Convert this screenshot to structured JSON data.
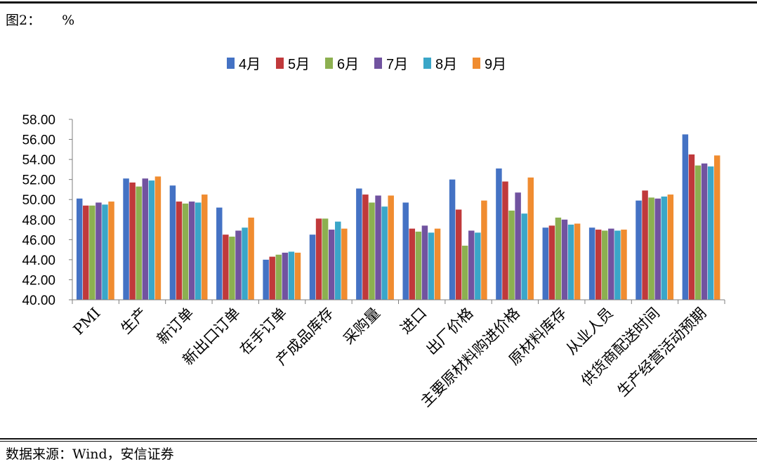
{
  "figure": {
    "title": "图2：",
    "unit": "%",
    "source": "数据来源：Wind，安信证券"
  },
  "chart_data": {
    "type": "bar",
    "title": "",
    "xlabel": "",
    "ylabel": "%",
    "ylim": [
      40,
      58
    ],
    "yticks": [
      "58.00",
      "56.00",
      "54.00",
      "52.00",
      "50.00",
      "48.00",
      "46.00",
      "44.00",
      "42.00",
      "40.00"
    ],
    "legend_position": "top",
    "grid": false,
    "categories": [
      "PMI",
      "生产",
      "新订单",
      "新出口订单",
      "在手订单",
      "产成品库存",
      "采购量",
      "进口",
      "出厂价格",
      "主要原材料购进价格",
      "原材料库存",
      "从业人员",
      "供货商配送时间",
      "生产经营活动预期"
    ],
    "series": [
      {
        "name": "4月",
        "color": "#4472C4",
        "values": [
          50.1,
          52.1,
          51.4,
          49.2,
          44.0,
          46.5,
          51.1,
          49.7,
          52.0,
          53.1,
          47.2,
          47.2,
          49.9,
          56.5
        ]
      },
      {
        "name": "5月",
        "color": "#C0393B",
        "values": [
          49.4,
          51.7,
          49.8,
          46.5,
          44.3,
          48.1,
          50.5,
          47.1,
          49.0,
          51.8,
          47.4,
          47.0,
          50.9,
          54.5
        ]
      },
      {
        "name": "6月",
        "color": "#8CB050",
        "values": [
          49.4,
          51.3,
          49.6,
          46.3,
          44.5,
          48.1,
          49.7,
          46.8,
          45.4,
          48.9,
          48.2,
          46.9,
          50.2,
          53.4
        ]
      },
      {
        "name": "7月",
        "color": "#7153A0",
        "values": [
          49.7,
          52.1,
          49.8,
          46.9,
          44.7,
          47.0,
          50.4,
          47.4,
          46.9,
          50.7,
          48.0,
          47.1,
          50.1,
          53.6
        ]
      },
      {
        "name": "8月",
        "color": "#3AA6C8",
        "values": [
          49.5,
          51.9,
          49.7,
          47.2,
          44.8,
          47.8,
          49.3,
          46.7,
          46.7,
          48.6,
          47.5,
          46.9,
          50.3,
          53.3
        ]
      },
      {
        "name": "9月",
        "color": "#F08C30",
        "values": [
          49.8,
          52.3,
          50.5,
          48.2,
          44.7,
          47.1,
          50.4,
          47.1,
          49.9,
          52.2,
          47.6,
          47.0,
          50.5,
          54.4
        ]
      }
    ]
  }
}
